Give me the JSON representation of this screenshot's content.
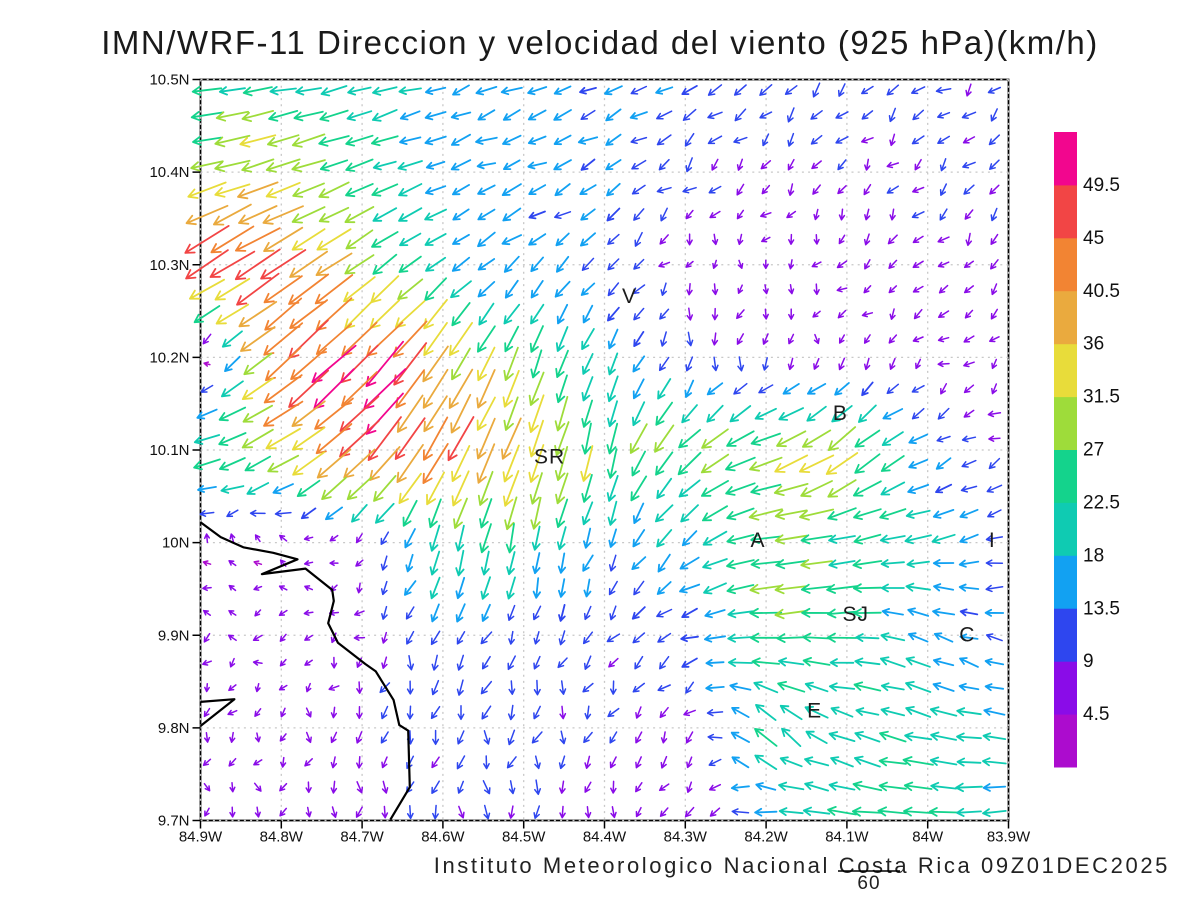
{
  "title": "IMN/WRF-11 Direccion y velocidad del viento (925 hPa)(km/h)",
  "caption": "Instituto Meteorologico Nacional Costa Rica 09Z01DEC2025",
  "chart_data": {
    "type": "vector_field_map",
    "model": "IMN/WRF-11",
    "variable": "Direccion y velocidad del viento",
    "level": "925 hPa",
    "units": "km/h",
    "valid_time": "09Z01DEC2025",
    "x_axis": {
      "labels": [
        "84.9W",
        "84.8W",
        "84.7W",
        "84.6W",
        "84.5W",
        "84.4W",
        "84.3W",
        "84.2W",
        "84.1W",
        "84W",
        "83.9W"
      ],
      "values": [
        -84.9,
        -84.8,
        -84.7,
        -84.6,
        -84.5,
        -84.4,
        -84.3,
        -84.2,
        -84.1,
        -84.0,
        -83.9
      ]
    },
    "y_axis": {
      "labels": [
        "10.5N",
        "10.4N",
        "10.3N",
        "10.2N",
        "10.1N",
        "10N",
        "9.9N",
        "9.8N",
        "9.7N"
      ],
      "values": [
        10.5,
        10.4,
        10.3,
        10.2,
        10.1,
        10.0,
        9.9,
        9.8,
        9.7
      ]
    },
    "grid": true,
    "colorbar": {
      "levels": [
        4.5,
        9,
        13.5,
        18,
        22.5,
        27,
        31.5,
        36,
        40.5,
        45,
        49.5
      ],
      "labels": [
        "4.5",
        "9",
        "13.5",
        "18",
        "22.5",
        "27",
        "31.5",
        "36",
        "40.5",
        "45",
        "49.5"
      ],
      "colors": [
        "#AC0CCE",
        "#8A0CE8",
        "#2E46EF",
        "#12A1F2",
        "#0FCBB2",
        "#14D38C",
        "#9EDC3A",
        "#E8DC3A",
        "#EAAA3E",
        "#F28433",
        "#F24545",
        "#F2068E"
      ]
    },
    "reference_vector": {
      "label": "60",
      "value": 60
    },
    "stations": [
      {
        "label": "V",
        "lon": -84.369,
        "lat": 10.266
      },
      {
        "label": "B",
        "lon": -84.108,
        "lat": 10.14
      },
      {
        "label": "SR",
        "lon": -84.468,
        "lat": 10.093
      },
      {
        "label": "A",
        "lon": -84.21,
        "lat": 10.003
      },
      {
        "label": "I",
        "lon": -83.92,
        "lat": 10.003
      },
      {
        "label": "SJ",
        "lon": -84.089,
        "lat": 9.923
      },
      {
        "label": "C",
        "lon": -83.951,
        "lat": 9.901
      },
      {
        "label": "E",
        "lon": -84.14,
        "lat": 9.819
      }
    ],
    "wind_grid": {
      "comment": "coarse 0.1-degree field; each cell [direction_toward_deg, speed_kmh]",
      "lons": [
        -84.9,
        -84.8,
        -84.7,
        -84.6,
        -84.5,
        -84.4,
        -84.3,
        -84.2,
        -84.1,
        -84.0,
        -83.9
      ],
      "lats": [
        10.5,
        10.4,
        10.3,
        10.2,
        10.1,
        10.0,
        9.9,
        9.8,
        9.7
      ],
      "vectors": [
        [
          [
            265,
            22
          ],
          [
            262,
            23
          ],
          [
            258,
            20
          ],
          [
            255,
            16
          ],
          [
            252,
            15
          ],
          [
            250,
            14
          ],
          [
            242,
            13
          ],
          [
            235,
            12
          ],
          [
            232,
            11
          ],
          [
            230,
            10
          ],
          [
            230,
            10
          ]
        ],
        [
          [
            256,
            30
          ],
          [
            253,
            34
          ],
          [
            250,
            24
          ],
          [
            246,
            16
          ],
          [
            248,
            16
          ],
          [
            242,
            14
          ],
          [
            232,
            10
          ],
          [
            222,
            8
          ],
          [
            220,
            8
          ],
          [
            222,
            9
          ],
          [
            225,
            9
          ]
        ],
        [
          [
            237,
            50
          ],
          [
            236,
            47
          ],
          [
            234,
            26
          ],
          [
            234,
            18
          ],
          [
            230,
            15
          ],
          [
            226,
            13
          ],
          [
            215,
            6
          ],
          [
            205,
            5
          ],
          [
            212,
            7
          ],
          [
            218,
            8
          ],
          [
            222,
            8
          ]
        ],
        [
          [
            20,
            6
          ],
          [
            228,
            46
          ],
          [
            226,
            52
          ],
          [
            215,
            38
          ],
          [
            200,
            26
          ],
          [
            204,
            17
          ],
          [
            196,
            11
          ],
          [
            188,
            8
          ],
          [
            215,
            6
          ],
          [
            238,
            7
          ],
          [
            225,
            7
          ]
        ],
        [
          [
            250,
            26
          ],
          [
            240,
            33
          ],
          [
            223,
            45
          ],
          [
            210,
            42
          ],
          [
            200,
            38
          ],
          [
            191,
            30
          ],
          [
            228,
            28
          ],
          [
            251,
            30
          ],
          [
            232,
            34
          ],
          [
            240,
            13
          ],
          [
            243,
            8
          ]
        ],
        [
          [
            330,
            5
          ],
          [
            320,
            5
          ],
          [
            240,
            6
          ],
          [
            196,
            24
          ],
          [
            191,
            23
          ],
          [
            202,
            15
          ],
          [
            228,
            17
          ],
          [
            264,
            28
          ],
          [
            261,
            24
          ],
          [
            256,
            20
          ],
          [
            250,
            13
          ]
        ],
        [
          [
            262,
            6
          ],
          [
            256,
            6
          ],
          [
            220,
            7
          ],
          [
            200,
            12
          ],
          [
            196,
            10
          ],
          [
            209,
            10
          ],
          [
            247,
            13
          ],
          [
            266,
            27
          ],
          [
            270,
            22
          ],
          [
            298,
            18
          ],
          [
            282,
            12
          ]
        ],
        [
          [
            200,
            6
          ],
          [
            196,
            6
          ],
          [
            191,
            9
          ],
          [
            190,
            11
          ],
          [
            196,
            11
          ],
          [
            201,
            9
          ],
          [
            228,
            9
          ],
          [
            318,
            23
          ],
          [
            291,
            20
          ],
          [
            281,
            22
          ],
          [
            276,
            16
          ]
        ],
        [
          [
            186,
            6
          ],
          [
            183,
            6
          ],
          [
            180,
            8
          ],
          [
            178,
            9
          ],
          [
            181,
            10
          ],
          [
            186,
            7
          ],
          [
            200,
            8
          ],
          [
            268,
            18
          ],
          [
            276,
            24
          ],
          [
            272,
            26
          ],
          [
            268,
            18
          ]
        ]
      ]
    },
    "coastline": [
      [
        [
          -84.9,
          10.022
        ],
        [
          -84.875,
          10.006
        ],
        [
          -84.847,
          9.995
        ],
        [
          -84.81,
          9.989
        ],
        [
          -84.78,
          9.982
        ],
        [
          -84.824,
          9.966
        ],
        [
          -84.77,
          9.972
        ],
        [
          -84.737,
          9.949
        ],
        [
          -84.735,
          9.937
        ],
        [
          -84.742,
          9.913
        ],
        [
          -84.73,
          9.892
        ],
        [
          -84.696,
          9.869
        ],
        [
          -84.683,
          9.861
        ],
        [
          -84.661,
          9.83
        ],
        [
          -84.654,
          9.803
        ],
        [
          -84.643,
          9.797
        ],
        [
          -84.641,
          9.736
        ],
        [
          -84.665,
          9.701
        ]
      ],
      [
        [
          -84.9,
          9.828
        ],
        [
          -84.858,
          9.831
        ],
        [
          -84.9,
          9.802
        ]
      ]
    ]
  }
}
